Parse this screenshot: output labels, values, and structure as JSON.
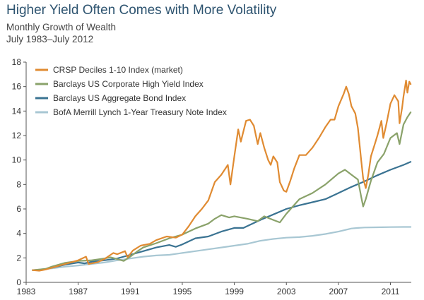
{
  "header": {
    "title": "Higher Yield Often Comes with More Volatility",
    "subtitle": "Monthly Growth of Wealth",
    "date_range": "July 1983–July 2012"
  },
  "chart_data": {
    "type": "line",
    "title": "Higher Yield Often Comes with More Volatility",
    "subtitle": "Monthly Growth of Wealth",
    "xlabel": "",
    "ylabel": "",
    "xlim": [
      1983,
      2012.6
    ],
    "ylim": [
      0,
      18
    ],
    "x_ticks": [
      "1983",
      "1987",
      "1991",
      "1995",
      "1999",
      "2003",
      "2007",
      "2011"
    ],
    "y_ticks": [
      "0",
      "2",
      "4",
      "6",
      "8",
      "10",
      "12",
      "14",
      "16",
      "18"
    ],
    "grid": false,
    "legend_position": "top-left",
    "series": [
      {
        "name": "CRSP Deciles 1-10 Index (market)",
        "color": "#e08b32",
        "points": [
          [
            1983.5,
            1.0
          ],
          [
            1984.0,
            0.95
          ],
          [
            1984.5,
            1.05
          ],
          [
            1985.0,
            1.2
          ],
          [
            1985.5,
            1.35
          ],
          [
            1986.0,
            1.5
          ],
          [
            1986.5,
            1.65
          ],
          [
            1987.0,
            1.8
          ],
          [
            1987.6,
            2.1
          ],
          [
            1987.8,
            1.5
          ],
          [
            1988.5,
            1.65
          ],
          [
            1989.0,
            1.9
          ],
          [
            1989.7,
            2.4
          ],
          [
            1990.0,
            2.3
          ],
          [
            1990.6,
            2.55
          ],
          [
            1990.8,
            2.05
          ],
          [
            1991.2,
            2.6
          ],
          [
            1991.8,
            3.0
          ],
          [
            1992.5,
            3.15
          ],
          [
            1993.0,
            3.45
          ],
          [
            1993.8,
            3.75
          ],
          [
            1994.5,
            3.65
          ],
          [
            1995.0,
            3.9
          ],
          [
            1995.5,
            4.6
          ],
          [
            1996.0,
            5.4
          ],
          [
            1996.5,
            6.0
          ],
          [
            1997.0,
            6.7
          ],
          [
            1997.5,
            8.2
          ],
          [
            1998.0,
            8.8
          ],
          [
            1998.5,
            9.6
          ],
          [
            1998.7,
            8.0
          ],
          [
            1999.0,
            10.3
          ],
          [
            1999.3,
            12.5
          ],
          [
            1999.5,
            11.5
          ],
          [
            1999.9,
            13.2
          ],
          [
            2000.2,
            13.3
          ],
          [
            2000.5,
            12.8
          ],
          [
            2000.8,
            11.3
          ],
          [
            2001.0,
            12.2
          ],
          [
            2001.3,
            11.0
          ],
          [
            2001.6,
            10.0
          ],
          [
            2001.8,
            9.6
          ],
          [
            2002.0,
            10.3
          ],
          [
            2002.3,
            9.8
          ],
          [
            2002.5,
            8.2
          ],
          [
            2002.8,
            7.5
          ],
          [
            2003.0,
            7.4
          ],
          [
            2003.3,
            8.3
          ],
          [
            2003.6,
            9.3
          ],
          [
            2004.0,
            10.4
          ],
          [
            2004.5,
            10.4
          ],
          [
            2005.0,
            11.0
          ],
          [
            2005.5,
            11.8
          ],
          [
            2006.0,
            12.7
          ],
          [
            2006.4,
            13.3
          ],
          [
            2006.7,
            13.3
          ],
          [
            2007.0,
            14.4
          ],
          [
            2007.4,
            15.4
          ],
          [
            2007.6,
            16.0
          ],
          [
            2007.8,
            15.4
          ],
          [
            2008.0,
            14.4
          ],
          [
            2008.3,
            13.8
          ],
          [
            2008.5,
            12.6
          ],
          [
            2008.75,
            10.0
          ],
          [
            2008.9,
            8.5
          ],
          [
            2009.1,
            7.7
          ],
          [
            2009.3,
            8.8
          ],
          [
            2009.5,
            10.3
          ],
          [
            2009.8,
            11.3
          ],
          [
            2010.0,
            12.0
          ],
          [
            2010.3,
            13.2
          ],
          [
            2010.45,
            11.8
          ],
          [
            2010.7,
            13.0
          ],
          [
            2011.0,
            14.6
          ],
          [
            2011.3,
            15.3
          ],
          [
            2011.6,
            14.8
          ],
          [
            2011.7,
            13.0
          ],
          [
            2011.9,
            14.3
          ],
          [
            2012.0,
            15.2
          ],
          [
            2012.2,
            16.5
          ],
          [
            2012.3,
            15.5
          ],
          [
            2012.45,
            16.4
          ],
          [
            2012.55,
            16.2
          ]
        ]
      },
      {
        "name": "Barclays US Corporate High Yield Index",
        "color": "#8aa26a",
        "points": [
          [
            1983.5,
            1.0
          ],
          [
            1984.0,
            1.05
          ],
          [
            1984.5,
            1.1
          ],
          [
            1985.0,
            1.3
          ],
          [
            1985.5,
            1.45
          ],
          [
            1986.0,
            1.6
          ],
          [
            1987.0,
            1.75
          ],
          [
            1988.0,
            1.8
          ],
          [
            1989.0,
            1.95
          ],
          [
            1989.5,
            2.05
          ],
          [
            1990.0,
            1.9
          ],
          [
            1990.5,
            1.75
          ],
          [
            1991.0,
            2.1
          ],
          [
            1991.5,
            2.5
          ],
          [
            1992.0,
            2.85
          ],
          [
            1993.0,
            3.2
          ],
          [
            1994.0,
            3.6
          ],
          [
            1995.0,
            3.9
          ],
          [
            1996.0,
            4.4
          ],
          [
            1997.0,
            4.8
          ],
          [
            1997.5,
            5.2
          ],
          [
            1998.0,
            5.5
          ],
          [
            1998.6,
            5.3
          ],
          [
            1999.0,
            5.4
          ],
          [
            2000.0,
            5.2
          ],
          [
            2000.8,
            5.0
          ],
          [
            2001.3,
            5.4
          ],
          [
            2002.0,
            5.1
          ],
          [
            2002.5,
            4.9
          ],
          [
            2003.0,
            5.6
          ],
          [
            2003.5,
            6.2
          ],
          [
            2004.0,
            6.8
          ],
          [
            2005.0,
            7.3
          ],
          [
            2006.0,
            8.0
          ],
          [
            2007.0,
            8.9
          ],
          [
            2007.5,
            9.2
          ],
          [
            2008.0,
            8.8
          ],
          [
            2008.5,
            8.4
          ],
          [
            2008.75,
            7.0
          ],
          [
            2008.9,
            6.2
          ],
          [
            2009.1,
            6.8
          ],
          [
            2009.5,
            8.3
          ],
          [
            2010.0,
            9.8
          ],
          [
            2010.5,
            10.5
          ],
          [
            2011.0,
            11.8
          ],
          [
            2011.5,
            12.2
          ],
          [
            2011.7,
            11.3
          ],
          [
            2012.0,
            12.9
          ],
          [
            2012.3,
            13.5
          ],
          [
            2012.55,
            13.9
          ]
        ]
      },
      {
        "name": "Barclays US Aggregate Bond Index",
        "color": "#3a7392",
        "points": [
          [
            1983.5,
            1.0
          ],
          [
            1984.0,
            1.02
          ],
          [
            1984.5,
            1.08
          ],
          [
            1985.0,
            1.2
          ],
          [
            1986.0,
            1.45
          ],
          [
            1987.0,
            1.62
          ],
          [
            1987.5,
            1.55
          ],
          [
            1988.0,
            1.68
          ],
          [
            1989.0,
            1.8
          ],
          [
            1990.0,
            1.95
          ],
          [
            1991.0,
            2.25
          ],
          [
            1992.0,
            2.55
          ],
          [
            1993.0,
            2.85
          ],
          [
            1994.0,
            3.05
          ],
          [
            1994.5,
            2.9
          ],
          [
            1995.0,
            3.1
          ],
          [
            1996.0,
            3.6
          ],
          [
            1997.0,
            3.75
          ],
          [
            1998.0,
            4.15
          ],
          [
            1999.0,
            4.45
          ],
          [
            1999.7,
            4.45
          ],
          [
            2000.0,
            4.6
          ],
          [
            2001.0,
            5.1
          ],
          [
            2002.0,
            5.55
          ],
          [
            2003.0,
            6.0
          ],
          [
            2004.0,
            6.3
          ],
          [
            2005.0,
            6.55
          ],
          [
            2006.0,
            6.8
          ],
          [
            2007.0,
            7.3
          ],
          [
            2008.0,
            7.8
          ],
          [
            2009.0,
            8.25
          ],
          [
            2010.0,
            8.75
          ],
          [
            2011.0,
            9.2
          ],
          [
            2012.0,
            9.6
          ],
          [
            2012.55,
            9.85
          ]
        ]
      },
      {
        "name": "BofA Merrill Lynch 1-Year Treasury Note Index",
        "color": "#a8c7d3",
        "points": [
          [
            1983.5,
            1.0
          ],
          [
            1984.0,
            1.05
          ],
          [
            1985.0,
            1.15
          ],
          [
            1986.0,
            1.28
          ],
          [
            1987.0,
            1.38
          ],
          [
            1988.0,
            1.5
          ],
          [
            1989.0,
            1.62
          ],
          [
            1990.0,
            1.8
          ],
          [
            1991.0,
            1.95
          ],
          [
            1992.0,
            2.1
          ],
          [
            1993.0,
            2.2
          ],
          [
            1994.0,
            2.25
          ],
          [
            1995.0,
            2.4
          ],
          [
            1996.0,
            2.55
          ],
          [
            1997.0,
            2.7
          ],
          [
            1998.0,
            2.85
          ],
          [
            1999.0,
            3.0
          ],
          [
            2000.0,
            3.15
          ],
          [
            2001.0,
            3.4
          ],
          [
            2002.0,
            3.55
          ],
          [
            2003.0,
            3.65
          ],
          [
            2004.0,
            3.7
          ],
          [
            2005.0,
            3.8
          ],
          [
            2006.0,
            3.95
          ],
          [
            2007.0,
            4.15
          ],
          [
            2008.0,
            4.4
          ],
          [
            2008.5,
            4.45
          ],
          [
            2009.0,
            4.48
          ],
          [
            2010.0,
            4.5
          ],
          [
            2011.0,
            4.52
          ],
          [
            2012.0,
            4.53
          ],
          [
            2012.55,
            4.53
          ]
        ]
      }
    ]
  }
}
